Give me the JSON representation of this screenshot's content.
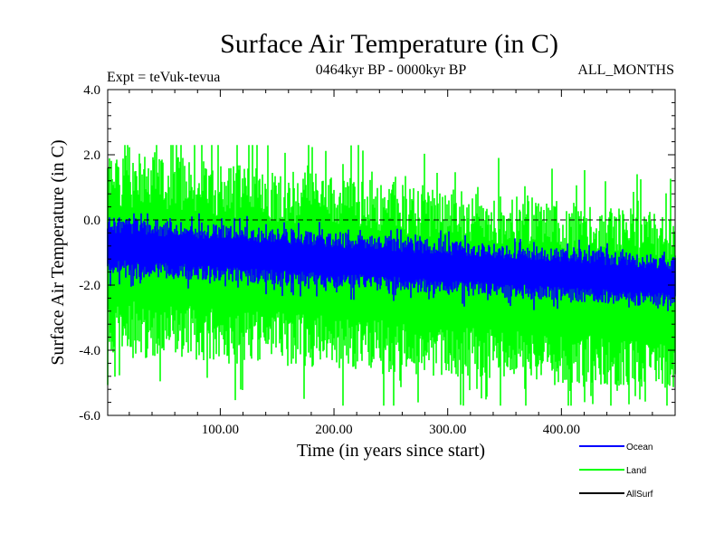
{
  "chart_data": {
    "type": "line",
    "title": "Surface Air Temperature (in C)",
    "subtitle_left": "Expt = teVuk-tevua",
    "subtitle_center": "0464kyr BP - 0000kyr BP",
    "subtitle_right": "ALL_MONTHS",
    "xlabel": "Time (in years since start)",
    "ylabel": "Surface Air Temperature (in C)",
    "xlim": [
      1,
      500
    ],
    "ylim": [
      -6.0,
      4.0
    ],
    "x_ticks": [
      100,
      200,
      300,
      400
    ],
    "x_tick_labels": [
      "100.00",
      "200.00",
      "300.00",
      "400.00"
    ],
    "y_ticks": [
      4.0,
      2.0,
      0.0,
      -2.0,
      -4.0,
      -6.0
    ],
    "y_tick_labels": [
      "4.0",
      "2.0",
      "0.0",
      "-2.0",
      "-4.0",
      "-6.0"
    ],
    "reference_line": 0.0,
    "grid": false,
    "legend_position": "bottom-right, outside plot",
    "series": [
      {
        "name": "Land",
        "color": "#00ff00",
        "x_start": 1,
        "x_end": 500,
        "center_start": -1.0,
        "center_end": -2.5,
        "half_range_start": 3.2,
        "half_range_end": 2.7,
        "extreme_max": 2.3,
        "extreme_min": -5.7
      },
      {
        "name": "Ocean",
        "color": "#0000ff",
        "x_start": 1,
        "x_end": 500,
        "center_start": -0.8,
        "center_end": -1.9,
        "half_range_start": 0.9,
        "half_range_end": 0.8,
        "extreme_max": 0.2,
        "extreme_min": -2.8
      },
      {
        "name": "AllSurf",
        "color": "#000000",
        "x_start": 1,
        "x_end": 500
      }
    ],
    "legend": [
      {
        "name": "Ocean",
        "color": "#0000ff"
      },
      {
        "name": "Land",
        "color": "#00ff00"
      },
      {
        "name": "AllSurf",
        "color": "#000000"
      }
    ]
  }
}
